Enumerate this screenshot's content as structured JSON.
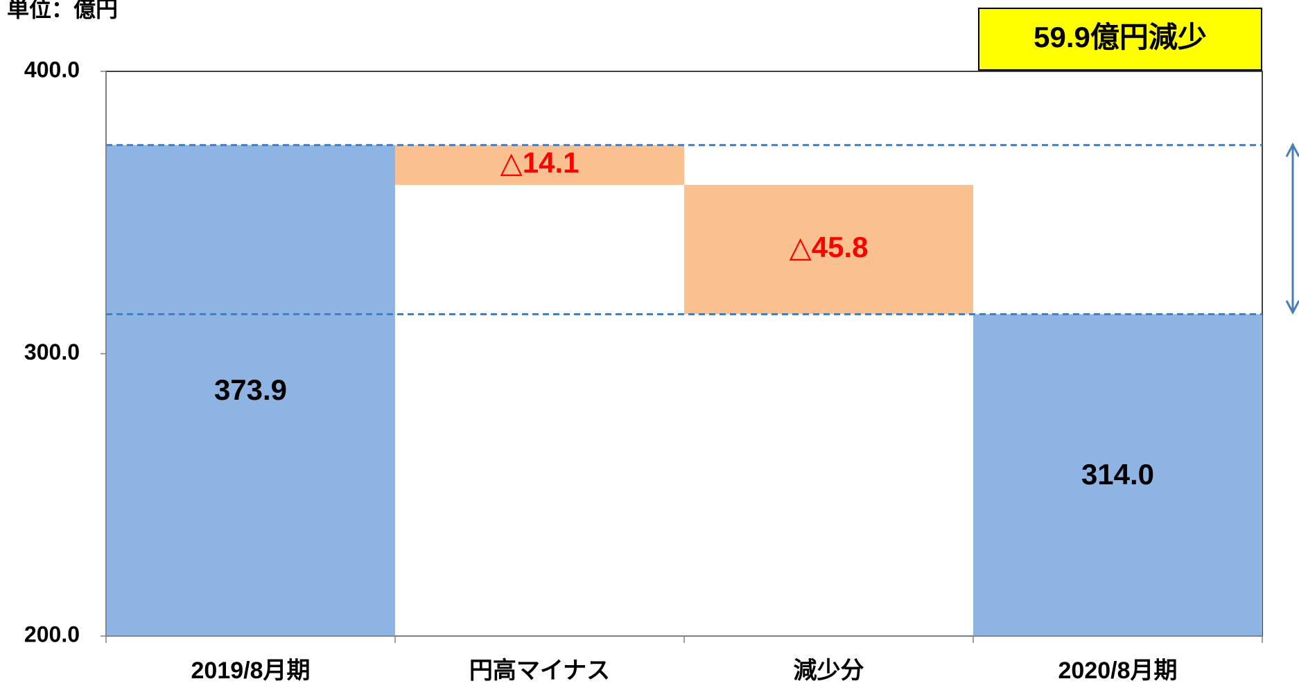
{
  "chart_data": {
    "type": "bar",
    "subtype": "waterfall",
    "unit_label": "単位：億円",
    "categories": [
      "2019/8月期",
      "円高マイナス",
      "減少分",
      "2020/8月期"
    ],
    "bars": [
      {
        "category": "2019/8月期",
        "kind": "total",
        "start": 0,
        "end": 373.9,
        "label": "373.9"
      },
      {
        "category": "円高マイナス",
        "kind": "decrease",
        "start": 373.9,
        "end": 359.8,
        "label": "△14.1"
      },
      {
        "category": "減少分",
        "kind": "decrease",
        "start": 359.8,
        "end": 314.0,
        "label": "△45.8"
      },
      {
        "category": "2020/8月期",
        "kind": "total",
        "start": 0,
        "end": 314.0,
        "label": "314.0"
      }
    ],
    "y_ticks": [
      "200.0",
      "300.0",
      "400.0"
    ],
    "ylim": [
      200,
      400
    ],
    "reference_lines": [
      373.9,
      314.0
    ],
    "callout": {
      "text": "59.9億円減少",
      "position": "top-right"
    },
    "gridlines": false,
    "legend": "none"
  },
  "colors": {
    "total": "#8EB4E3",
    "decrease": "#FAC090",
    "total_label": "#000000",
    "decrease_label": "#FF0000",
    "reference_line": "#4A7EBB",
    "arrow": "#4A7EBB",
    "callout_bg": "#FFFF00",
    "axis": "#7f7f7f"
  }
}
